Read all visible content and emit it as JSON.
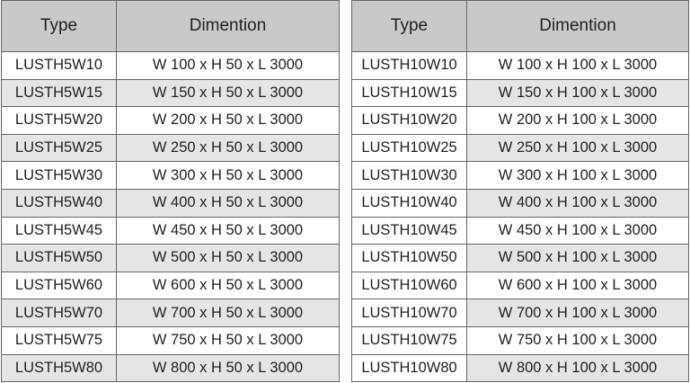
{
  "tables": [
    {
      "headers": [
        "Type",
        "Dimention"
      ],
      "rows": [
        [
          "LUSTH5W10",
          "W 100 x H 50 x L 3000"
        ],
        [
          "LUSTH5W15",
          "W 150 x H 50 x L 3000"
        ],
        [
          "LUSTH5W20",
          "W 200 x H 50 x L 3000"
        ],
        [
          "LUSTH5W25",
          "W 250 x H 50 x L 3000"
        ],
        [
          "LUSTH5W30",
          "W 300 x H 50 x L 3000"
        ],
        [
          "LUSTH5W40",
          "W 400 x H 50 x L 3000"
        ],
        [
          "LUSTH5W45",
          "W 450 x H 50 x L 3000"
        ],
        [
          "LUSTH5W50",
          "W 500 x H 50 x L 3000"
        ],
        [
          "LUSTH5W60",
          "W 600 x H 50 x L 3000"
        ],
        [
          "LUSTH5W70",
          "W 700 x H 50 x L 3000"
        ],
        [
          "LUSTH5W75",
          "W 750 x H 50 x L 3000"
        ],
        [
          "LUSTH5W80",
          "W 800 x H 50 x L 3000"
        ]
      ]
    },
    {
      "headers": [
        "Type",
        "Dimention"
      ],
      "rows": [
        [
          "LUSTH10W10",
          "W 100 x H 100 x L 3000"
        ],
        [
          "LUSTH10W15",
          "W 150 x H 100 x L 3000"
        ],
        [
          "LUSTH10W20",
          "W 200 x H 100 x L 3000"
        ],
        [
          "LUSTH10W25",
          "W 250 x H 100 x L 3000"
        ],
        [
          "LUSTH10W30",
          "W 300 x H 100 x L 3000"
        ],
        [
          "LUSTH10W40",
          "W 400 x H 100 x L 3000"
        ],
        [
          "LUSTH10W45",
          "W 450 x H 100 x L 3000"
        ],
        [
          "LUSTH10W50",
          "W 500 x H 100 x L 3000"
        ],
        [
          "LUSTH10W60",
          "W 600 x H 100 x L 3000"
        ],
        [
          "LUSTH10W70",
          "W 700 x H 100 x L 3000"
        ],
        [
          "LUSTH10W75",
          "W 750 x H 100 x L 3000"
        ],
        [
          "LUSTH10W80",
          "W 800 x H 100 x L 3000"
        ]
      ]
    }
  ],
  "colors": {
    "header_bg": "#c9c9c9",
    "alt_row_bg": "#e5e5e5",
    "border": "#666666"
  }
}
